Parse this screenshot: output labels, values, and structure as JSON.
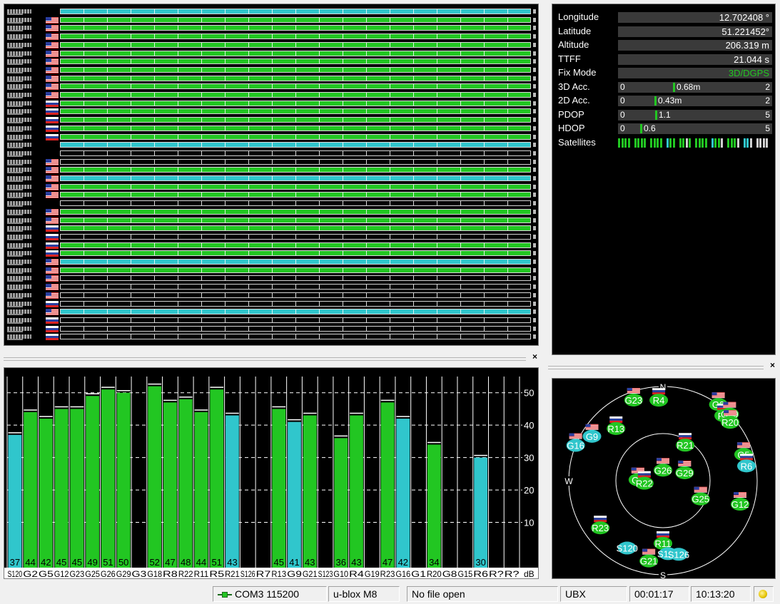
{
  "info": {
    "rows": [
      {
        "label": "Longitude",
        "value": "12.702408 °"
      },
      {
        "label": "Latitude",
        "value": "51.221452°"
      },
      {
        "label": "Altitude",
        "value": "206.319 m"
      },
      {
        "label": "TTFF",
        "value": "21.044 s"
      },
      {
        "label": "Fix Mode",
        "value": "3D/DGPS"
      }
    ],
    "gauges": [
      {
        "label": "3D Acc.",
        "min": "0",
        "max": "2",
        "value": 0.68,
        "text": "0.68m"
      },
      {
        "label": "2D Acc.",
        "min": "0",
        "max": "2",
        "value": 0.43,
        "text": "0.43m"
      },
      {
        "label": "PDOP",
        "min": "0",
        "max": "5",
        "value": 1.1,
        "text": "1.1"
      },
      {
        "label": "HDOP",
        "min": "0",
        "max": "5",
        "value": 0.6,
        "text": "0.6"
      }
    ],
    "satellites_label": "Satellites",
    "fix_color": "#22c622"
  },
  "tracking": {
    "rows": [
      {
        "flag": "none",
        "color": "cyan"
      },
      {
        "flag": "us",
        "color": "green"
      },
      {
        "flag": "us",
        "color": "green"
      },
      {
        "flag": "us",
        "color": "green"
      },
      {
        "flag": "us",
        "color": "green"
      },
      {
        "flag": "us",
        "color": "green"
      },
      {
        "flag": "us",
        "color": "green"
      },
      {
        "flag": "us",
        "color": "green"
      },
      {
        "flag": "us",
        "color": "green"
      },
      {
        "flag": "us",
        "color": "green"
      },
      {
        "flag": "us",
        "color": "green"
      },
      {
        "flag": "ru",
        "color": "green"
      },
      {
        "flag": "ru",
        "color": "green"
      },
      {
        "flag": "ru",
        "color": "green"
      },
      {
        "flag": "ru",
        "color": "green"
      },
      {
        "flag": "ru",
        "color": "green"
      },
      {
        "flag": "none",
        "color": "cyan"
      },
      {
        "flag": "none",
        "color": "dark"
      },
      {
        "flag": "us",
        "color": "dark"
      },
      {
        "flag": "us",
        "color": "green"
      },
      {
        "flag": "us",
        "color": "cyan"
      },
      {
        "flag": "us",
        "color": "green"
      },
      {
        "flag": "us",
        "color": "green"
      },
      {
        "flag": "none",
        "color": "dark"
      },
      {
        "flag": "us",
        "color": "green"
      },
      {
        "flag": "us",
        "color": "green"
      },
      {
        "flag": "ru",
        "color": "green"
      },
      {
        "flag": "ru",
        "color": "dark"
      },
      {
        "flag": "ru",
        "color": "green"
      },
      {
        "flag": "ru",
        "color": "green"
      },
      {
        "flag": "us",
        "color": "cyan"
      },
      {
        "flag": "us",
        "color": "green"
      },
      {
        "flag": "us",
        "color": "dark"
      },
      {
        "flag": "us",
        "color": "dark"
      },
      {
        "flag": "us",
        "color": "dark"
      },
      {
        "flag": "ru",
        "color": "dark"
      },
      {
        "flag": "us",
        "color": "cyan"
      },
      {
        "flag": "ru",
        "color": "dark"
      },
      {
        "flag": "ru",
        "color": "dark"
      },
      {
        "flag": "ru",
        "color": "dark"
      }
    ]
  },
  "chart_data": {
    "type": "bar",
    "categories": [
      "S120",
      "G2",
      "G5",
      "G12",
      "G23",
      "G25",
      "G26",
      "G29",
      "G3",
      "G18",
      "R8",
      "R22",
      "R11",
      "R5",
      "R21",
      "S126",
      "R7",
      "R13",
      "G9",
      "G21",
      "S123",
      "G10",
      "R4",
      "G19",
      "R23",
      "G16",
      "G1",
      "R20",
      "G8",
      "G15",
      "R6",
      "R?",
      "R?"
    ],
    "values": [
      37,
      44,
      42,
      45,
      45,
      49,
      51,
      50,
      null,
      52,
      47,
      48,
      44,
      51,
      43,
      null,
      null,
      45,
      41,
      43,
      null,
      36,
      43,
      null,
      47,
      42,
      null,
      34,
      null,
      null,
      30,
      null,
      null
    ],
    "bar_labels": [
      "37",
      "44",
      "42",
      "45",
      "45",
      "49",
      "51",
      "50",
      "",
      "52",
      "47",
      "48",
      "44",
      "51",
      "43",
      "",
      "",
      "45",
      "41",
      "43",
      "",
      "36",
      "43",
      "",
      "47",
      "42",
      "",
      "34",
      "",
      "",
      "30",
      "",
      ""
    ],
    "colors": [
      "cyan",
      "green",
      "green",
      "green",
      "green",
      "green",
      "green",
      "green",
      "none",
      "green",
      "green",
      "green",
      "green",
      "green",
      "cyan",
      "none",
      "none",
      "green",
      "cyan",
      "green",
      "none",
      "green",
      "green",
      "none",
      "green",
      "cyan",
      "none",
      "green",
      "none",
      "none",
      "cyan",
      "none",
      "none"
    ],
    "unit": "dB",
    "yticks": [
      "10",
      "20",
      "30",
      "40",
      "50"
    ],
    "ylim": [
      0,
      55
    ]
  },
  "skyview": {
    "cardinals": {
      "n": "N",
      "s": "S",
      "w": "W"
    },
    "satellites": [
      {
        "name": "G23",
        "az": 340,
        "el": 8,
        "color": "green",
        "flag": "us"
      },
      {
        "name": "R4",
        "az": 357,
        "el": 13,
        "color": "green",
        "flag": "ru"
      },
      {
        "name": "G2",
        "az": 36,
        "el": 0,
        "color": "green",
        "flag": "us"
      },
      {
        "name": "R8",
        "az": 43,
        "el": 5,
        "color": "green",
        "flag": "ru"
      },
      {
        "name": "G29",
        "az": 45,
        "el": 0,
        "color": "green",
        "flag": "us"
      },
      {
        "name": "R20",
        "az": 49,
        "el": 5,
        "color": "green",
        "flag": "us"
      },
      {
        "name": "R13",
        "az": 318,
        "el": 23,
        "color": "green",
        "flag": "ru"
      },
      {
        "name": "G9",
        "az": 302,
        "el": 10,
        "color": "cyan",
        "flag": "us"
      },
      {
        "name": "G16",
        "az": 292,
        "el": 0,
        "color": "cyan",
        "flag": "us"
      },
      {
        "name": "R21",
        "az": 32,
        "el": 50,
        "color": "green",
        "flag": "ru"
      },
      {
        "name": "G5",
        "az": 72,
        "el": 9,
        "color": "green",
        "flag": "us"
      },
      {
        "name": "R6",
        "az": 80,
        "el": 9,
        "color": "cyan",
        "flag": "ru"
      },
      {
        "name": "G26",
        "az": 0,
        "el": 80,
        "color": "green",
        "flag": "us"
      },
      {
        "name": "G3",
        "az": 272,
        "el": 66,
        "color": "green",
        "flag": "us"
      },
      {
        "name": "R22",
        "az": 262,
        "el": 72,
        "color": "green",
        "flag": "ru"
      },
      {
        "name": "G29b",
        "label": "G29",
        "az": 70,
        "el": 68,
        "color": "green",
        "flag": "us"
      },
      {
        "name": "G25",
        "az": 116,
        "el": 50,
        "color": "green",
        "flag": "us"
      },
      {
        "name": "G12",
        "az": 107,
        "el": 13,
        "color": "green",
        "flag": "us"
      },
      {
        "name": "R23",
        "az": 233,
        "el": 15,
        "color": "green",
        "flag": "ru"
      },
      {
        "name": "S120",
        "az": 208,
        "el": 17,
        "color": "cyan",
        "flag": "none"
      },
      {
        "name": "R11",
        "az": 180,
        "el": 30,
        "color": "green",
        "flag": "ru"
      },
      {
        "name": "S123",
        "az": 176,
        "el": 20,
        "color": "cyan",
        "flag": "none"
      },
      {
        "name": "S126",
        "az": 168,
        "el": 18,
        "color": "cyan",
        "flag": "none"
      },
      {
        "name": "G21",
        "az": 190,
        "el": 12,
        "color": "green",
        "flag": "us"
      }
    ]
  },
  "status": {
    "port": "COM3 115200",
    "receiver": "u-blox M8",
    "file": "No file open",
    "protocol": "UBX",
    "elapsed": "00:01:17",
    "clock": "10:13:20"
  }
}
